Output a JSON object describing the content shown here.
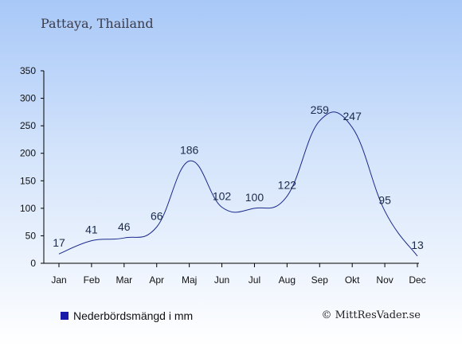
{
  "chart_data": {
    "type": "line",
    "title": "Pattaya, Thailand",
    "categories": [
      "Jan",
      "Feb",
      "Mar",
      "Apr",
      "Maj",
      "Jun",
      "Jul",
      "Aug",
      "Sep",
      "Okt",
      "Nov",
      "Dec"
    ],
    "series": [
      {
        "name": "Nederbördsmängd i mm",
        "values": [
          17,
          41,
          46,
          66,
          186,
          102,
          100,
          122,
          259,
          247,
          95,
          13
        ]
      }
    ],
    "yticks": [
      0,
      50,
      100,
      150,
      200,
      250,
      300,
      350
    ],
    "ylim": [
      0,
      350
    ],
    "xlabel": "",
    "ylabel": "",
    "grid": false,
    "legend_position": "bottom-left",
    "line_color": "#1a2a8a",
    "legend_color": "#1a1aa8"
  },
  "copyright": "© MittResVader.se"
}
